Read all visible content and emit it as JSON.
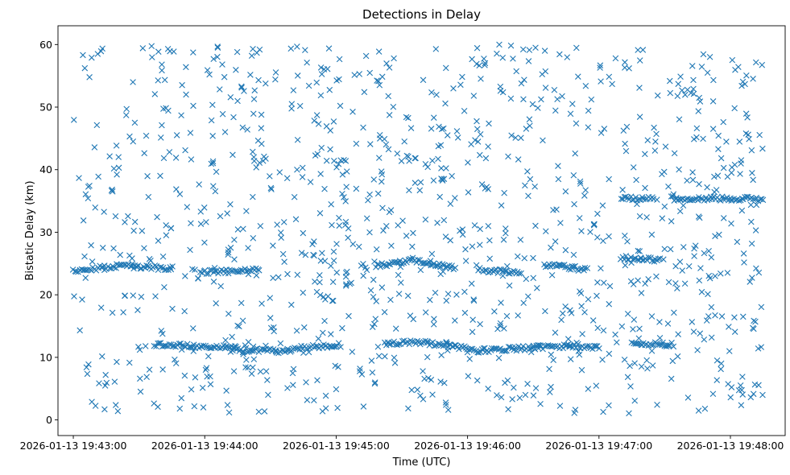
{
  "chart_data": {
    "type": "scatter",
    "title": "Detections in Delay",
    "xlabel": "Time (UTC)",
    "ylabel": "Bistatic Delay (km)",
    "marker": "x",
    "color": "#1f77b4",
    "xlim": [
      "2026-01-13 19:42:53",
      "2026-01-13 19:48:25"
    ],
    "ylim": [
      -2.5,
      63
    ],
    "x_ticks": [
      "2026-01-13 19:43:00",
      "2026-01-13 19:44:00",
      "2026-01-13 19:45:00",
      "2026-01-13 19:46:00",
      "2026-01-13 19:47:00",
      "2026-01-13 19:48:00"
    ],
    "y_ticks": [
      0,
      10,
      20,
      30,
      40,
      50,
      60
    ],
    "grid": false,
    "tracks": [
      {
        "t_start": "2026-01-13 19:43:00",
        "t_end": "2026-01-13 19:43:20",
        "delay_start": 23.8,
        "delay_end": 24.6
      },
      {
        "t_start": "2026-01-13 19:43:20",
        "t_end": "2026-01-13 19:43:45",
        "delay_start": 24.6,
        "delay_end": 24.2
      },
      {
        "t_start": "2026-01-13 19:43:58",
        "t_end": "2026-01-13 19:44:25",
        "delay_start": 23.6,
        "delay_end": 23.9
      },
      {
        "t_start": "2026-01-13 19:43:37",
        "t_end": "2026-01-13 19:44:15",
        "delay_start": 12.0,
        "delay_end": 11.6
      },
      {
        "t_start": "2026-01-13 19:44:12",
        "t_end": "2026-01-13 19:44:38",
        "delay_start": 11.2,
        "delay_end": 11.0
      },
      {
        "t_start": "2026-01-13 19:44:38",
        "t_end": "2026-01-13 19:45:02",
        "delay_start": 11.3,
        "delay_end": 12.0
      },
      {
        "t_start": "2026-01-13 19:45:18",
        "t_end": "2026-01-13 19:45:35",
        "delay_start": 24.5,
        "delay_end": 25.6
      },
      {
        "t_start": "2026-01-13 19:45:35",
        "t_end": "2026-01-13 19:45:55",
        "delay_start": 25.6,
        "delay_end": 24.2
      },
      {
        "t_start": "2026-01-13 19:45:22",
        "t_end": "2026-01-13 19:45:42",
        "delay_start": 12.2,
        "delay_end": 12.5
      },
      {
        "t_start": "2026-01-13 19:45:42",
        "t_end": "2026-01-13 19:46:00",
        "delay_start": 12.3,
        "delay_end": 11.5
      },
      {
        "t_start": "2026-01-13 19:46:05",
        "t_end": "2026-01-13 19:46:25",
        "delay_start": 24.0,
        "delay_end": 23.5
      },
      {
        "t_start": "2026-01-13 19:46:00",
        "t_end": "2026-01-13 19:46:45",
        "delay_start": 11.0,
        "delay_end": 11.8
      },
      {
        "t_start": "2026-01-13 19:46:35",
        "t_end": "2026-01-13 19:46:55",
        "delay_start": 24.8,
        "delay_end": 24.0
      },
      {
        "t_start": "2026-01-13 19:46:45",
        "t_end": "2026-01-13 19:47:00",
        "delay_start": 12.0,
        "delay_end": 11.5
      },
      {
        "t_start": "2026-01-13 19:47:10",
        "t_end": "2026-01-13 19:47:28",
        "delay_start": 26.0,
        "delay_end": 25.5
      },
      {
        "t_start": "2026-01-13 19:47:15",
        "t_end": "2026-01-13 19:47:33",
        "delay_start": 12.2,
        "delay_end": 12.0
      },
      {
        "t_start": "2026-01-13 19:47:10",
        "t_end": "2026-01-13 19:47:25",
        "delay_start": 35.3,
        "delay_end": 35.5
      },
      {
        "t_start": "2026-01-13 19:47:33",
        "t_end": "2026-01-13 19:48:15",
        "delay_start": 35.4,
        "delay_end": 35.3
      }
    ],
    "clutter": {
      "t_range": [
        "2026-01-13 19:43:00",
        "2026-01-13 19:48:15"
      ],
      "delay_range": [
        1,
        60
      ],
      "count": 1100
    }
  }
}
